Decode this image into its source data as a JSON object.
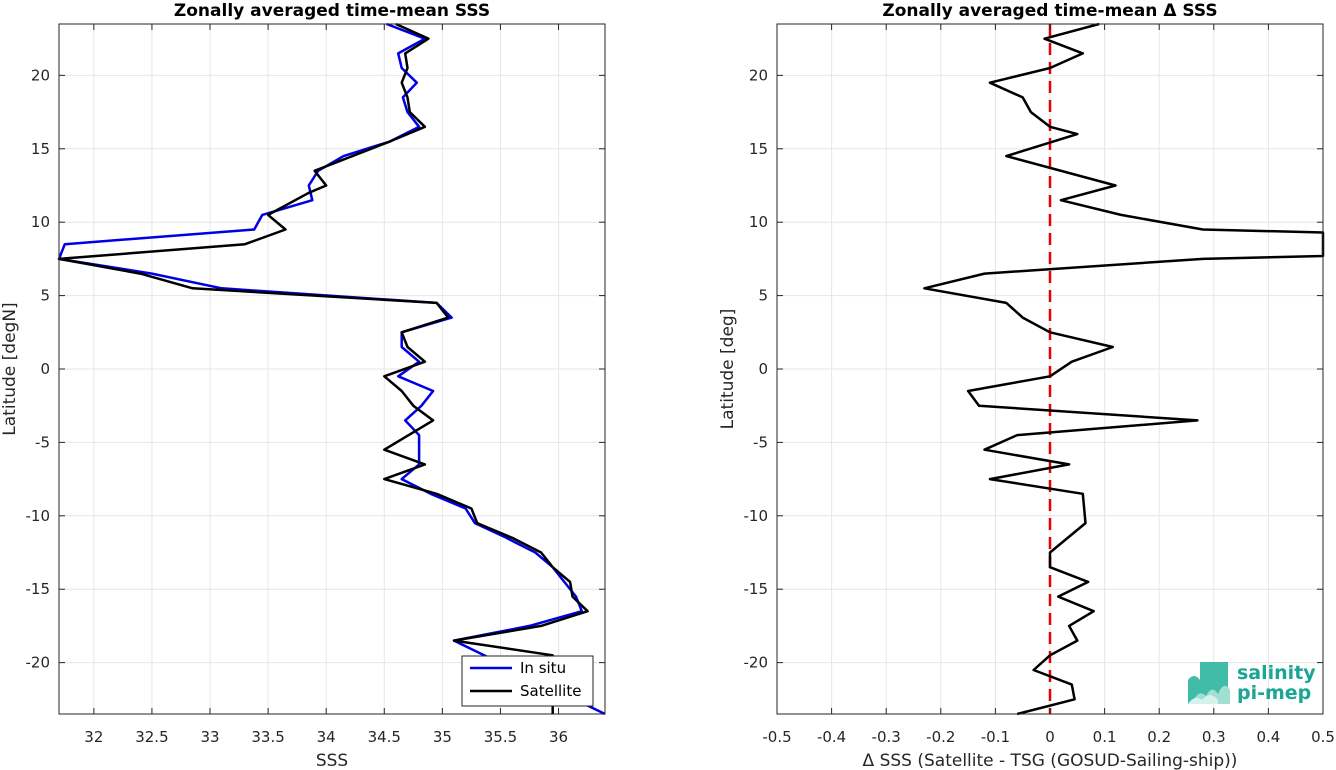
{
  "chart_data": [
    {
      "type": "line",
      "title": "Zonally averaged time-mean SSS",
      "xlabel": "SSS",
      "ylabel": "Latitude [degN]",
      "xlim": [
        31.7,
        36.4
      ],
      "ylim": [
        -23.5,
        23.5
      ],
      "xticks": [
        32,
        32.5,
        33,
        33.5,
        34,
        34.5,
        35,
        35.5,
        36
      ],
      "xticklabels": [
        "32",
        "32.5",
        "33",
        "33.5",
        "34",
        "34.5",
        "35",
        "35.5",
        "36"
      ],
      "yticks": [
        -20,
        -15,
        -10,
        -5,
        0,
        5,
        10,
        15,
        20
      ],
      "yticklabels": [
        "-20",
        "-15",
        "-10",
        "-5",
        "0",
        "5",
        "10",
        "15",
        "20"
      ],
      "grid": true,
      "legend_position": "bottom-right",
      "series": [
        {
          "name": "In situ",
          "color": "#0000e6",
          "points": [
            [
              34.52,
              23.5
            ],
            [
              34.85,
              22.5
            ],
            [
              34.62,
              21.5
            ],
            [
              34.65,
              20.5
            ],
            [
              34.78,
              19.5
            ],
            [
              34.66,
              18.5
            ],
            [
              34.7,
              17.5
            ],
            [
              34.8,
              16.5
            ],
            [
              34.55,
              15.5
            ],
            [
              34.15,
              14.5
            ],
            [
              33.93,
              13.5
            ],
            [
              33.85,
              12.5
            ],
            [
              33.88,
              11.5
            ],
            [
              33.45,
              10.5
            ],
            [
              33.38,
              9.5
            ],
            [
              31.75,
              8.5
            ],
            [
              31.7,
              7.5
            ],
            [
              32.5,
              6.5
            ],
            [
              33.1,
              5.5
            ],
            [
              34.95,
              4.5
            ],
            [
              35.08,
              3.5
            ],
            [
              34.65,
              2.5
            ],
            [
              34.65,
              1.5
            ],
            [
              34.8,
              0.5
            ],
            [
              34.62,
              -0.5
            ],
            [
              34.92,
              -1.5
            ],
            [
              34.82,
              -2.5
            ],
            [
              34.68,
              -3.5
            ],
            [
              34.8,
              -4.5
            ],
            [
              34.8,
              -5.5
            ],
            [
              34.8,
              -6.5
            ],
            [
              34.65,
              -7.5
            ],
            [
              34.9,
              -8.5
            ],
            [
              35.2,
              -9.5
            ],
            [
              35.28,
              -10.5
            ],
            [
              35.55,
              -11.5
            ],
            [
              35.8,
              -12.5
            ],
            [
              35.95,
              -13.5
            ],
            [
              36.05,
              -14.5
            ],
            [
              36.15,
              -15.5
            ],
            [
              36.2,
              -16.5
            ],
            [
              35.75,
              -17.5
            ],
            [
              35.1,
              -18.5
            ],
            [
              36.4,
              -23.5
            ]
          ]
        },
        {
          "name": "Satellite",
          "color": "#000000",
          "points": [
            [
              34.6,
              23.5
            ],
            [
              34.88,
              22.5
            ],
            [
              34.68,
              21.5
            ],
            [
              34.7,
              20.5
            ],
            [
              34.65,
              19.5
            ],
            [
              34.7,
              18.5
            ],
            [
              34.72,
              17.5
            ],
            [
              34.85,
              16.5
            ],
            [
              34.55,
              15.5
            ],
            [
              33.9,
              13.5
            ],
            [
              34.0,
              12.5
            ],
            [
              33.85,
              12
            ],
            [
              33.5,
              10.5
            ],
            [
              33.65,
              9.5
            ],
            [
              33.3,
              8.5
            ],
            [
              31.7,
              7.5
            ],
            [
              32.4,
              6.5
            ],
            [
              32.85,
              5.5
            ],
            [
              34.95,
              4.5
            ],
            [
              35.05,
              3.5
            ],
            [
              34.65,
              2.5
            ],
            [
              34.7,
              1.5
            ],
            [
              34.85,
              0.5
            ],
            [
              34.5,
              -0.5
            ],
            [
              34.65,
              -1.5
            ],
            [
              34.75,
              -2.5
            ],
            [
              34.92,
              -3.5
            ],
            [
              34.5,
              -5.5
            ],
            [
              34.85,
              -6.5
            ],
            [
              34.5,
              -7.5
            ],
            [
              34.95,
              -8.5
            ],
            [
              35.25,
              -9.5
            ],
            [
              35.3,
              -10.5
            ],
            [
              35.6,
              -11.5
            ],
            [
              35.85,
              -12.5
            ],
            [
              35.95,
              -13.5
            ],
            [
              36.1,
              -14.5
            ],
            [
              36.12,
              -15.5
            ],
            [
              36.25,
              -16.5
            ],
            [
              35.85,
              -17.5
            ],
            [
              35.1,
              -18.5
            ],
            [
              35.95,
              -19.5
            ],
            [
              35.95,
              -23.5
            ]
          ]
        }
      ]
    },
    {
      "type": "line",
      "title": "Zonally averaged time-mean Δ SSS",
      "xlabel": "Δ SSS (Satellite - TSG (GOSUD-Sailing-ship))",
      "ylabel": "Latitude [deg]",
      "xlim": [
        -0.5,
        0.5
      ],
      "ylim": [
        -23.5,
        23.5
      ],
      "xticks": [
        -0.5,
        -0.4,
        -0.3,
        -0.2,
        -0.1,
        0,
        0.1,
        0.2,
        0.3,
        0.4,
        0.5
      ],
      "xticklabels": [
        "-0.5",
        "-0.4",
        "-0.3",
        "-0.2",
        "-0.1",
        "0",
        "0.1",
        "0.2",
        "0.3",
        "0.4",
        "0.5"
      ],
      "yticks": [
        -20,
        -15,
        -10,
        -5,
        0,
        5,
        10,
        15,
        20
      ],
      "yticklabels": [
        "-20",
        "-15",
        "-10",
        "-5",
        "0",
        "5",
        "10",
        "15",
        "20"
      ],
      "grid": true,
      "reference_line": {
        "x": 0,
        "color": "#e60000",
        "style": "dashed"
      },
      "series": [
        {
          "color": "#000000",
          "points": [
            [
              0.09,
              23.5
            ],
            [
              -0.01,
              22.5
            ],
            [
              0.06,
              21.5
            ],
            [
              0.0,
              20.5
            ],
            [
              -0.11,
              19.5
            ],
            [
              -0.05,
              18.5
            ],
            [
              -0.035,
              17.5
            ],
            [
              0.0,
              16.5
            ],
            [
              0.05,
              16
            ],
            [
              -0.08,
              14.5
            ],
            [
              0.12,
              12.5
            ],
            [
              0.02,
              11.5
            ],
            [
              0.13,
              10.5
            ],
            [
              0.28,
              9.5
            ],
            [
              0.5,
              9.3
            ],
            [
              0.5,
              7.7
            ],
            [
              0.28,
              7.5
            ],
            [
              -0.12,
              6.5
            ],
            [
              -0.23,
              5.5
            ],
            [
              -0.08,
              4.5
            ],
            [
              -0.05,
              3.5
            ],
            [
              0.0,
              2.5
            ],
            [
              0.115,
              1.5
            ],
            [
              0.04,
              0.5
            ],
            [
              0.0,
              -0.5
            ],
            [
              -0.15,
              -1.5
            ],
            [
              -0.13,
              -2.5
            ],
            [
              0.27,
              -3.5
            ],
            [
              -0.06,
              -4.5
            ],
            [
              -0.12,
              -5.5
            ],
            [
              0.035,
              -6.5
            ],
            [
              -0.11,
              -7.5
            ],
            [
              0.06,
              -8.5
            ],
            [
              0.065,
              -10.5
            ],
            [
              0.0,
              -12.5
            ],
            [
              0.0,
              -13.5
            ],
            [
              0.07,
              -14.5
            ],
            [
              0.015,
              -15.5
            ],
            [
              0.08,
              -16.5
            ],
            [
              0.035,
              -17.5
            ],
            [
              0.05,
              -18.5
            ],
            [
              0.0,
              -19.5
            ],
            [
              -0.03,
              -20.5
            ],
            [
              0.04,
              -21.5
            ],
            [
              0.045,
              -22.5
            ],
            [
              -0.06,
              -23.5
            ]
          ]
        }
      ]
    }
  ],
  "legend": {
    "entries": [
      {
        "label": "In situ",
        "color": "#0000e6"
      },
      {
        "label": "Satellite",
        "color": "#000000"
      }
    ]
  },
  "logo": {
    "line1": "salinity",
    "line2": "pi-mep"
  }
}
